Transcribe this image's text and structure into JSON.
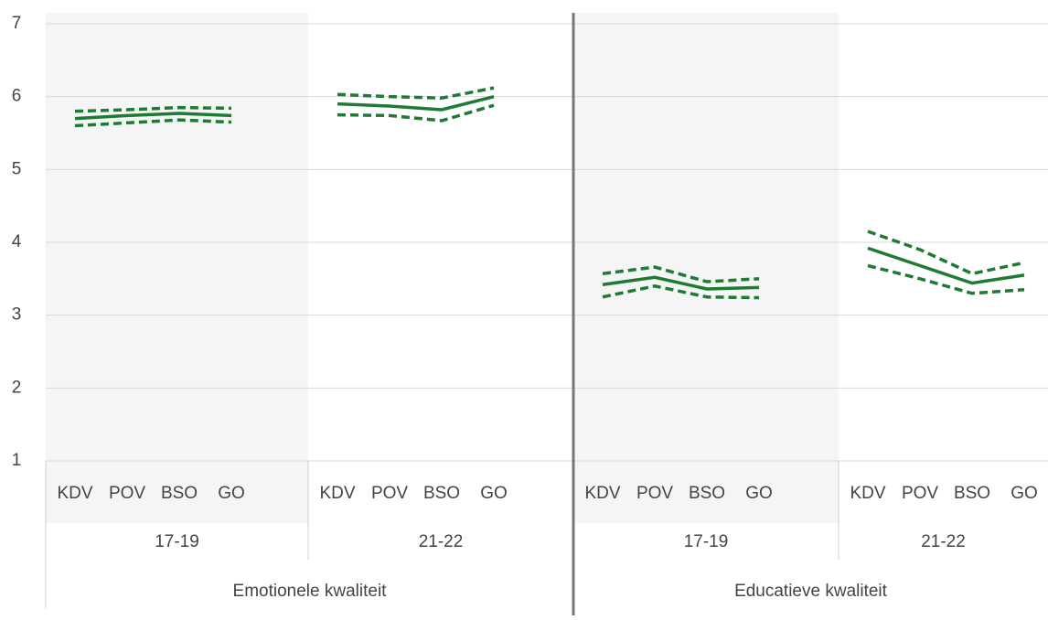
{
  "chart_data": {
    "type": "line",
    "ylim": [
      1,
      7
    ],
    "yticks": [
      1,
      2,
      3,
      4,
      5,
      6,
      7
    ],
    "grid": true,
    "color": "#1e7b34",
    "groups": [
      {
        "label": "Emotionele kwaliteit",
        "panels": [
          {
            "label": "17-19",
            "categories": [
              "KDV",
              "POV",
              "BSO",
              "GO"
            ],
            "series": [
              {
                "dash": true,
                "values": [
                  5.8,
                  5.82,
                  5.85,
                  5.84
                ]
              },
              {
                "dash": false,
                "values": [
                  5.7,
                  5.74,
                  5.77,
                  5.74
                ]
              },
              {
                "dash": true,
                "values": [
                  5.6,
                  5.64,
                  5.68,
                  5.65
                ]
              }
            ]
          },
          {
            "label": "21-22",
            "categories": [
              "KDV",
              "POV",
              "BSO",
              "GO"
            ],
            "series": [
              {
                "dash": true,
                "values": [
                  6.03,
                  6.0,
                  5.98,
                  6.12
                ]
              },
              {
                "dash": false,
                "values": [
                  5.9,
                  5.87,
                  5.82,
                  6.0
                ]
              },
              {
                "dash": true,
                "values": [
                  5.75,
                  5.74,
                  5.67,
                  5.88
                ]
              }
            ]
          }
        ]
      },
      {
        "label": "Educatieve kwaliteit",
        "panels": [
          {
            "label": "17-19",
            "categories": [
              "KDV",
              "POV",
              "BSO",
              "GO"
            ],
            "series": [
              {
                "dash": true,
                "values": [
                  3.57,
                  3.66,
                  3.46,
                  3.5
                ]
              },
              {
                "dash": false,
                "values": [
                  3.42,
                  3.52,
                  3.36,
                  3.38
                ]
              },
              {
                "dash": true,
                "values": [
                  3.25,
                  3.4,
                  3.25,
                  3.24
                ]
              }
            ]
          },
          {
            "label": "21-22",
            "categories": [
              "KDV",
              "POV",
              "BSO",
              "GO"
            ],
            "series": [
              {
                "dash": true,
                "values": [
                  4.15,
                  3.9,
                  3.57,
                  3.72
                ]
              },
              {
                "dash": false,
                "values": [
                  3.92,
                  3.68,
                  3.44,
                  3.55
                ]
              },
              {
                "dash": true,
                "values": [
                  3.68,
                  3.5,
                  3.3,
                  3.35
                ]
              }
            ]
          }
        ]
      }
    ]
  }
}
